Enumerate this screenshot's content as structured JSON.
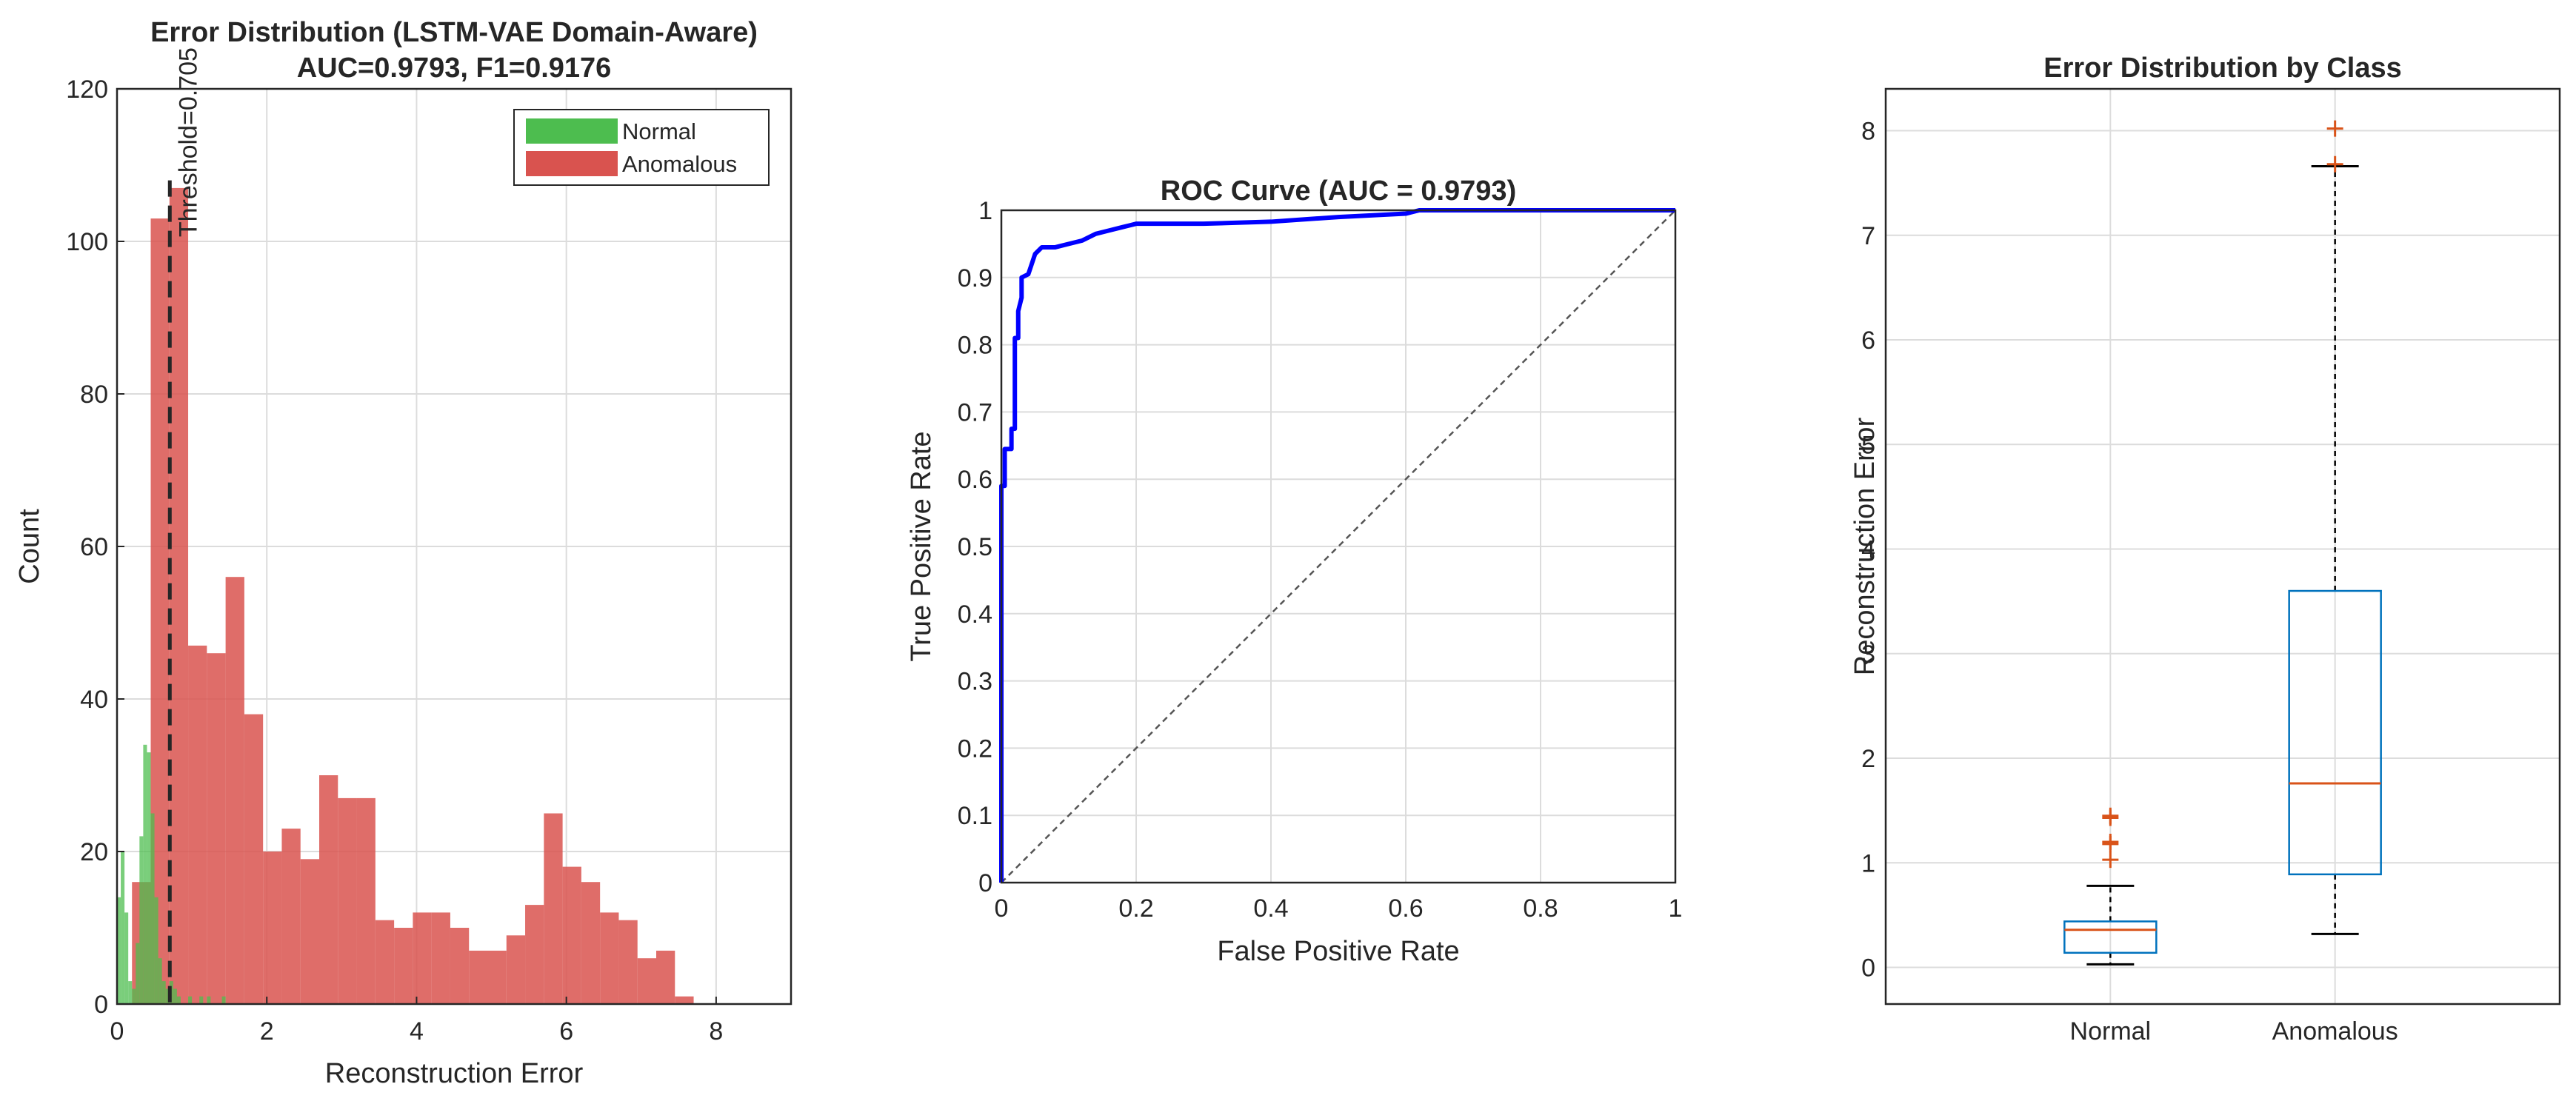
{
  "chart_data": [
    {
      "type": "histogram",
      "title": "Error Distribution (LSTM-VAE Domain-Aware)",
      "subtitle": "AUC=0.9793, F1=0.9176",
      "xlabel": "Reconstruction Error",
      "ylabel": "Count",
      "xlim": [
        0,
        9
      ],
      "ylim": [
        0,
        120
      ],
      "xticks": [
        0,
        2,
        4,
        6,
        8
      ],
      "yticks": [
        0,
        20,
        40,
        60,
        80,
        100,
        120
      ],
      "grid": true,
      "legend_position": "top-right",
      "series": [
        {
          "name": "Normal",
          "color": "#4dbd4f",
          "bins": [
            {
              "x0": 0.0,
              "x1": 0.05,
              "count": 14
            },
            {
              "x0": 0.05,
              "x1": 0.1,
              "count": 20
            },
            {
              "x0": 0.1,
              "x1": 0.15,
              "count": 12
            },
            {
              "x0": 0.15,
              "x1": 0.2,
              "count": 3
            },
            {
              "x0": 0.2,
              "x1": 0.25,
              "count": 2
            },
            {
              "x0": 0.25,
              "x1": 0.3,
              "count": 8
            },
            {
              "x0": 0.3,
              "x1": 0.35,
              "count": 22
            },
            {
              "x0": 0.35,
              "x1": 0.4,
              "count": 34
            },
            {
              "x0": 0.4,
              "x1": 0.45,
              "count": 33
            },
            {
              "x0": 0.45,
              "x1": 0.5,
              "count": 25
            },
            {
              "x0": 0.5,
              "x1": 0.55,
              "count": 14
            },
            {
              "x0": 0.55,
              "x1": 0.6,
              "count": 6
            },
            {
              "x0": 0.6,
              "x1": 0.65,
              "count": 3
            },
            {
              "x0": 0.65,
              "x1": 0.7,
              "count": 2
            },
            {
              "x0": 0.7,
              "x1": 0.75,
              "count": 3
            },
            {
              "x0": 0.75,
              "x1": 0.8,
              "count": 2
            },
            {
              "x0": 0.8,
              "x1": 0.85,
              "count": 1
            },
            {
              "x0": 0.95,
              "x1": 1.0,
              "count": 1
            },
            {
              "x0": 1.1,
              "x1": 1.15,
              "count": 1
            },
            {
              "x0": 1.2,
              "x1": 1.25,
              "count": 1
            },
            {
              "x0": 1.4,
              "x1": 1.45,
              "count": 1
            }
          ]
        },
        {
          "name": "Anomalous",
          "color": "#d9534f",
          "bins": [
            {
              "x0": 0.2,
              "x1": 0.45,
              "count": 16
            },
            {
              "x0": 0.45,
              "x1": 0.7,
              "count": 103
            },
            {
              "x0": 0.7,
              "x1": 0.95,
              "count": 107
            },
            {
              "x0": 0.95,
              "x1": 1.2,
              "count": 47
            },
            {
              "x0": 1.2,
              "x1": 1.45,
              "count": 46
            },
            {
              "x0": 1.45,
              "x1": 1.7,
              "count": 56
            },
            {
              "x0": 1.7,
              "x1": 1.95,
              "count": 38
            },
            {
              "x0": 1.95,
              "x1": 2.2,
              "count": 20
            },
            {
              "x0": 2.2,
              "x1": 2.45,
              "count": 23
            },
            {
              "x0": 2.45,
              "x1": 2.7,
              "count": 19
            },
            {
              "x0": 2.7,
              "x1": 2.95,
              "count": 30
            },
            {
              "x0": 2.95,
              "x1": 3.2,
              "count": 27
            },
            {
              "x0": 3.2,
              "x1": 3.45,
              "count": 27
            },
            {
              "x0": 3.45,
              "x1": 3.7,
              "count": 11
            },
            {
              "x0": 3.7,
              "x1": 3.95,
              "count": 10
            },
            {
              "x0": 3.95,
              "x1": 4.2,
              "count": 12
            },
            {
              "x0": 4.2,
              "x1": 4.45,
              "count": 12
            },
            {
              "x0": 4.45,
              "x1": 4.7,
              "count": 10
            },
            {
              "x0": 4.7,
              "x1": 4.95,
              "count": 7
            },
            {
              "x0": 4.95,
              "x1": 5.2,
              "count": 7
            },
            {
              "x0": 5.2,
              "x1": 5.45,
              "count": 9
            },
            {
              "x0": 5.45,
              "x1": 5.7,
              "count": 13
            },
            {
              "x0": 5.7,
              "x1": 5.95,
              "count": 25
            },
            {
              "x0": 5.95,
              "x1": 6.2,
              "count": 18
            },
            {
              "x0": 6.2,
              "x1": 6.45,
              "count": 16
            },
            {
              "x0": 6.45,
              "x1": 6.7,
              "count": 12
            },
            {
              "x0": 6.7,
              "x1": 6.95,
              "count": 11
            },
            {
              "x0": 6.95,
              "x1": 7.2,
              "count": 6
            },
            {
              "x0": 7.2,
              "x1": 7.45,
              "count": 7
            },
            {
              "x0": 7.45,
              "x1": 7.7,
              "count": 1
            }
          ]
        }
      ],
      "threshold": {
        "value": 0.705,
        "label": "Threshold=0.705"
      }
    },
    {
      "type": "line",
      "title": "ROC Curve (AUC = 0.9793)",
      "xlabel": "False Positive Rate",
      "ylabel": "True Positive Rate",
      "xlim": [
        0,
        1
      ],
      "ylim": [
        0,
        1
      ],
      "xticks": [
        0,
        0.2,
        0.4,
        0.6,
        0.8,
        1
      ],
      "yticks": [
        0,
        0.1,
        0.2,
        0.3,
        0.4,
        0.5,
        0.6,
        0.7,
        0.8,
        0.9,
        1
      ],
      "grid": true,
      "series": [
        {
          "color": "#0000ff",
          "points": [
            [
              0,
              0
            ],
            [
              0,
              0.59
            ],
            [
              0.005,
              0.59
            ],
            [
              0.005,
              0.645
            ],
            [
              0.015,
              0.645
            ],
            [
              0.015,
              0.675
            ],
            [
              0.02,
              0.675
            ],
            [
              0.02,
              0.81
            ],
            [
              0.025,
              0.81
            ],
            [
              0.025,
              0.85
            ],
            [
              0.03,
              0.87
            ],
            [
              0.03,
              0.9
            ],
            [
              0.04,
              0.905
            ],
            [
              0.045,
              0.92
            ],
            [
              0.05,
              0.935
            ],
            [
              0.055,
              0.94
            ],
            [
              0.06,
              0.945
            ],
            [
              0.08,
              0.945
            ],
            [
              0.1,
              0.95
            ],
            [
              0.12,
              0.955
            ],
            [
              0.14,
              0.965
            ],
            [
              0.16,
              0.97
            ],
            [
              0.18,
              0.975
            ],
            [
              0.2,
              0.98
            ],
            [
              0.3,
              0.98
            ],
            [
              0.4,
              0.983
            ],
            [
              0.5,
              0.99
            ],
            [
              0.6,
              0.995
            ],
            [
              0.62,
              1.0
            ],
            [
              1.0,
              1.0
            ]
          ]
        },
        {
          "color": "#555555",
          "style": "dashed",
          "points": [
            [
              0,
              0
            ],
            [
              1,
              1
            ]
          ]
        }
      ]
    },
    {
      "type": "boxplot",
      "title": "Error Distribution by Class",
      "xlabel": "",
      "ylabel": "Reconstruction Error",
      "categories": [
        "Normal",
        "Anomalous"
      ],
      "ylim": [
        -0.35,
        8.4
      ],
      "yticks": [
        0,
        1,
        2,
        3,
        4,
        5,
        6,
        7,
        8
      ],
      "grid": true,
      "boxes": [
        {
          "whisker_low": 0.03,
          "q1": 0.14,
          "median": 0.36,
          "q3": 0.44,
          "whisker_high": 0.78,
          "outliers": [
            1.03,
            1.18,
            1.2,
            1.43,
            1.45
          ]
        },
        {
          "whisker_low": 0.32,
          "q1": 0.89,
          "median": 1.76,
          "q3": 3.6,
          "whisker_high": 7.66,
          "outliers": [
            7.68,
            8.02
          ]
        }
      ],
      "box_color": "#0072bd",
      "median_color": "#d95319",
      "outlier_color": "#d95319"
    }
  ]
}
